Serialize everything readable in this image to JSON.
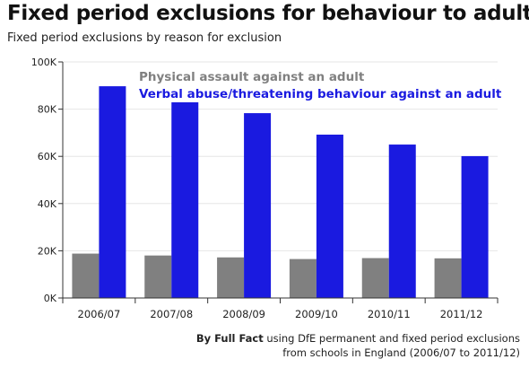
{
  "header": {
    "title": "Fixed period exclusions for behaviour to adults",
    "subtitle": "Fixed period exclusions by reason for exclusion"
  },
  "footer": {
    "source_bold": "By Full Fact",
    "source_rest": "using DfE permanent and fixed period exclusions",
    "source_line2": "from schools in England (2006/07  to 2011/12)"
  },
  "colors": {
    "physical": "#808080",
    "verbal": "#1a1ae0",
    "grid": "#e6e6e6",
    "axis": "#333333"
  },
  "chart_data": {
    "type": "bar",
    "title": "Fixed period exclusions for behaviour to adults",
    "subtitle": "Fixed period exclusions by reason for exclusion",
    "xlabel": "",
    "ylabel": "",
    "categories": [
      "2006/07",
      "2007/08",
      "2008/09",
      "2009/10",
      "2010/11",
      "2011/12"
    ],
    "series": [
      {
        "name": "Physical assault against an adult",
        "values": [
          18800,
          18000,
          17200,
          16500,
          16900,
          16800
        ]
      },
      {
        "name": "Verbal abuse/threatening behaviour against an adult",
        "values": [
          89700,
          82900,
          78300,
          69200,
          65000,
          60100
        ]
      }
    ],
    "ylim": [
      0,
      100000
    ],
    "yticks": [
      0,
      20000,
      40000,
      60000,
      80000,
      100000
    ],
    "ytick_labels": [
      "0K",
      "20K",
      "40K",
      "60K",
      "80K",
      "100K"
    ],
    "grid": true,
    "legend": "top-left"
  }
}
